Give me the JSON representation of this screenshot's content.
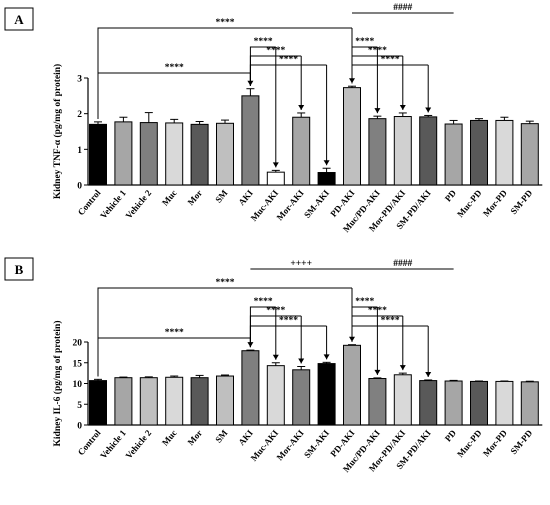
{
  "chart_data": [
    {
      "panel": "A",
      "type": "bar",
      "ylabel": "Kidney TNF-α (pg/mg of protein)",
      "ylim": [
        0,
        3
      ],
      "yticks": [
        0,
        1,
        2,
        3
      ],
      "categories": [
        "Control",
        "Vehicle 1",
        "Vehicle 2",
        "Muc",
        "Mor",
        "SM",
        "AKI",
        "Muc-AKI",
        "Mor-AKI",
        "SM-AKI",
        "PD-AKI",
        "Muc/PD-AKI",
        "Mor-PD/AKI",
        "SM-PD/AKI",
        "PD",
        "Muc-PD",
        "Mor-PD",
        "SM-PD"
      ],
      "values": [
        1.7,
        1.77,
        1.75,
        1.74,
        1.7,
        1.73,
        2.5,
        0.36,
        1.9,
        0.35,
        2.73,
        1.86,
        1.92,
        1.91,
        1.71,
        1.81,
        1.81,
        1.72
      ],
      "errors": [
        0.07,
        0.13,
        0.28,
        0.1,
        0.08,
        0.09,
        0.2,
        0.05,
        0.12,
        0.12,
        0.04,
        0.07,
        0.1,
        0.04,
        0.1,
        0.05,
        0.09,
        0.07
      ],
      "colors": [
        "#000000",
        "#a6a6a6",
        "#7f7f7f",
        "#d9d9d9",
        "#595959",
        "#bfbfbf",
        "#7f7f7f",
        "#ffffff",
        "#a6a6a6",
        "#000000",
        "#bfbfbf",
        "#808080",
        "#d0d0d0",
        "#595959",
        "#a6a6a6",
        "#595959",
        "#d9d9d9",
        "#a6a6a6"
      ],
      "significance": [
        {
          "from": 0,
          "to": 6,
          "label": "****"
        },
        {
          "from": 0,
          "to": 10,
          "label": "****"
        },
        {
          "from": 6,
          "to": 7,
          "label": "****"
        },
        {
          "from": 6,
          "to": 8,
          "label": "****"
        },
        {
          "from": 6,
          "to": 9,
          "label": "****"
        },
        {
          "from": 10,
          "to": 11,
          "label": "****"
        },
        {
          "from": 10,
          "to": 12,
          "label": "****"
        },
        {
          "from": 10,
          "to": 13,
          "label": "****"
        },
        {
          "from": 10,
          "to": 14,
          "label": "####",
          "style": "line"
        }
      ]
    },
    {
      "panel": "B",
      "type": "bar",
      "ylabel": "Kidney IL-6 (pg/mg of protein)",
      "ylim": [
        0,
        20
      ],
      "yticks": [
        0,
        5,
        10,
        15,
        20
      ],
      "categories": [
        "Control",
        "Vehicle 1",
        "Vehicle 2",
        "Muc",
        "Mor",
        "SM",
        "AKI",
        "Muc-AKI",
        "Mor-AKI",
        "SM-AKI",
        "PD-AKI",
        "Muc/PD-AKI",
        "Mor-PD/AKI",
        "SM-PD/AKI",
        "PD",
        "Muc-PD",
        "Mor-PD",
        "SM-PD"
      ],
      "values": [
        10.7,
        11.4,
        11.4,
        11.5,
        11.4,
        11.8,
        17.9,
        14.3,
        13.3,
        14.8,
        19.2,
        11.2,
        12.1,
        10.7,
        10.6,
        10.5,
        10.5,
        10.4
      ],
      "errors": [
        0.3,
        0.15,
        0.2,
        0.3,
        0.55,
        0.25,
        0.15,
        0.7,
        0.8,
        0.3,
        0.15,
        0.15,
        0.4,
        0.15,
        0.15,
        0.1,
        0.1,
        0.15
      ],
      "colors": [
        "#000000",
        "#a6a6a6",
        "#bfbfbf",
        "#d9d9d9",
        "#595959",
        "#bfbfbf",
        "#7f7f7f",
        "#d9d9d9",
        "#808080",
        "#000000",
        "#a6a6a6",
        "#808080",
        "#d9d9d9",
        "#595959",
        "#a6a6a6",
        "#595959",
        "#d9d9d9",
        "#a6a6a6"
      ],
      "significance": [
        {
          "from": 0,
          "to": 6,
          "label": "****"
        },
        {
          "from": 0,
          "to": 10,
          "label": "****"
        },
        {
          "from": 6,
          "to": 7,
          "label": "****"
        },
        {
          "from": 6,
          "to": 8,
          "label": "****"
        },
        {
          "from": 6,
          "to": 9,
          "label": "****"
        },
        {
          "from": 10,
          "to": 11,
          "label": "****"
        },
        {
          "from": 10,
          "to": 12,
          "label": "****"
        },
        {
          "from": 10,
          "to": 13,
          "label": "****"
        },
        {
          "from": 6,
          "to": 10,
          "label": "++++",
          "style": "line"
        },
        {
          "from": 10,
          "to": 14,
          "label": "####",
          "style": "line"
        }
      ]
    }
  ]
}
